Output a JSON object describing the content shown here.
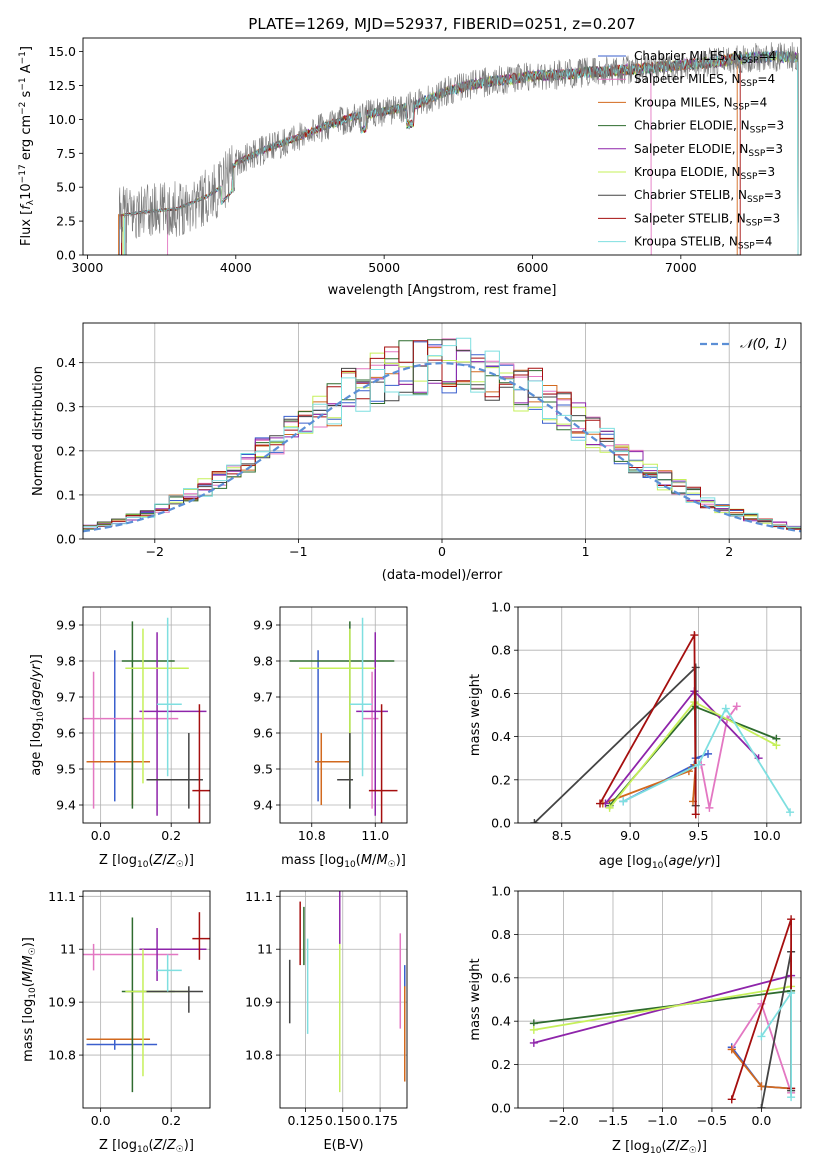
{
  "figure_title": "PLATE=1269, MJD=52937, FIBERID=0251, z=0.207",
  "models": [
    {
      "name": "Chabrier MILES",
      "nssp": "4",
      "color": "#3a5fcd"
    },
    {
      "name": "Salpeter MILES",
      "nssp": "4",
      "color": "#e377c2"
    },
    {
      "name": "Kroupa MILES",
      "nssp": "4",
      "color": "#d2691e"
    },
    {
      "name": "Chabrier ELODIE",
      "nssp": "3",
      "color": "#2e6b2e"
    },
    {
      "name": "Salpeter ELODIE",
      "nssp": "3",
      "color": "#8e24aa"
    },
    {
      "name": "Kroupa ELODIE",
      "nssp": "3",
      "color": "#c6f05a"
    },
    {
      "name": "Chabrier STELIB",
      "nssp": "3",
      "color": "#444444"
    },
    {
      "name": "Salpeter STELIB",
      "nssp": "3",
      "color": "#a50f0f"
    },
    {
      "name": "Kroupa STELIB",
      "nssp": "4",
      "color": "#7fdfe0"
    }
  ],
  "chart_data": [
    {
      "id": "spectrum",
      "type": "line",
      "title": "PLATE=1269, MJD=52937, FIBERID=0251, z=0.207",
      "xlabel": "wavelength [Angstrom, rest frame]",
      "ylabel": "Flux [f_λ 10^-17 erg cm^-2 s^-1 A^-1]",
      "xlim": [
        2970,
        7810
      ],
      "ylim": [
        0,
        16
      ],
      "xticks": [
        3000,
        4000,
        5000,
        6000,
        7000
      ],
      "yticks": [
        0.0,
        2.5,
        5.0,
        7.5,
        10.0,
        12.5,
        15.0
      ],
      "ytick_labels": [
        "0.0",
        "2.5",
        "5.0",
        "7.5",
        "10.0",
        "12.5",
        "15.0"
      ],
      "legend": "right",
      "continuum": {
        "x": [
          3200,
          3400,
          3600,
          3800,
          3900,
          4000,
          4200,
          4400,
          4600,
          4800,
          5000,
          5200,
          5400,
          5600,
          5800,
          6000,
          6200,
          6400,
          6600,
          6800,
          7000,
          7200,
          7400,
          7600
        ],
        "y": [
          2.9,
          3.2,
          3.4,
          4.3,
          5.0,
          6.8,
          7.8,
          8.6,
          9.5,
          10.2,
          10.6,
          11.0,
          12.0,
          12.6,
          12.9,
          13.2,
          13.3,
          13.5,
          13.6,
          13.8,
          14.0,
          14.2,
          14.5,
          14.6
        ]
      }
    },
    {
      "id": "residuals",
      "type": "line",
      "xlabel": "(data-model)/error",
      "ylabel": "Normed distribution",
      "xlim": [
        -2.5,
        2.5
      ],
      "ylim": [
        0,
        0.49
      ],
      "xticks": [
        -2,
        -1,
        0,
        1,
        2
      ],
      "xtick_labels": [
        "−2",
        "−1",
        "0",
        "1",
        "2"
      ],
      "yticks": [
        0.0,
        0.1,
        0.2,
        0.3,
        0.4
      ],
      "ytick_labels": [
        "0.0",
        "0.1",
        "0.2",
        "0.3",
        "0.4"
      ],
      "grid": true,
      "legend": "top-right",
      "normal_label": "𝒩(0, 1)",
      "hist_bins": {
        "start": -2.5,
        "width": 0.1,
        "count": 50
      }
    },
    {
      "id": "age_vs_z",
      "type": "scatter",
      "xlabel": "Z [log₁₀(Z/Z☉)]",
      "ylabel": "age  [log₁₀(age/yr)]",
      "xlim": [
        -0.05,
        0.31
      ],
      "ylim": [
        9.35,
        9.95
      ],
      "xticks": [
        0.0,
        0.2
      ],
      "xtick_labels": [
        "0.0",
        "0.2"
      ],
      "yticks": [
        9.4,
        9.5,
        9.6,
        9.7,
        9.8,
        9.9
      ],
      "grid": true,
      "points": [
        {
          "x": 0.04,
          "xerr": [
            0.04,
            0.04
          ],
          "y": 9.52,
          "yerr": [
            0.11,
            0.31
          ]
        },
        {
          "x": -0.02,
          "xerr": [
            0.15,
            0.24
          ],
          "y": 9.64,
          "yerr": [
            0.25,
            0.13
          ]
        },
        {
          "x": 0.09,
          "xerr": [
            0.13,
            0.05
          ],
          "y": 9.52,
          "yerr": [
            0.12,
            0.08
          ]
        },
        {
          "x": 0.09,
          "xerr": [
            0.03,
            0.12
          ],
          "y": 9.8,
          "yerr": [
            0.41,
            0.11
          ]
        },
        {
          "x": 0.16,
          "xerr": [
            0.05,
            0.14
          ],
          "y": 9.66,
          "yerr": [
            0.29,
            0.22
          ]
        },
        {
          "x": 0.12,
          "xerr": [
            0.05,
            0.13
          ],
          "y": 9.78,
          "yerr": [
            0.32,
            0.11
          ]
        },
        {
          "x": 0.25,
          "xerr": [
            0.12,
            0.04
          ],
          "y": 9.47,
          "yerr": [
            0.08,
            0.13
          ]
        },
        {
          "x": 0.28,
          "xerr": [
            0.02,
            0.03
          ],
          "y": 9.44,
          "yerr": [
            0.16,
            0.24
          ]
        },
        {
          "x": 0.19,
          "xerr": [
            0.03,
            0.04
          ],
          "y": 9.68,
          "yerr": [
            0.2,
            0.24
          ]
        }
      ]
    },
    {
      "id": "age_vs_mass",
      "type": "scatter",
      "xlabel": "mass [log₁₀(M/M☉)]",
      "xlim": [
        10.7,
        11.1
      ],
      "ylim": [
        9.35,
        9.95
      ],
      "xticks": [
        10.8,
        11.0
      ],
      "xtick_labels": [
        "10.8",
        "11.0"
      ],
      "yticks": [
        9.4,
        9.5,
        9.6,
        9.7,
        9.8,
        9.9
      ],
      "grid": true,
      "points": [
        {
          "x": 10.82,
          "xerr": [
            0.01,
            0.01
          ],
          "y": 9.52,
          "yerr": [
            0.11,
            0.31
          ]
        },
        {
          "x": 10.99,
          "xerr": [
            0.03,
            0.02
          ],
          "y": 9.64,
          "yerr": [
            0.25,
            0.13
          ]
        },
        {
          "x": 10.83,
          "xerr": [
            0.02,
            0.09
          ],
          "y": 9.52,
          "yerr": [
            0.12,
            0.08
          ]
        },
        {
          "x": 10.92,
          "xerr": [
            0.19,
            0.14
          ],
          "y": 9.8,
          "yerr": [
            0.41,
            0.11
          ]
        },
        {
          "x": 11.0,
          "xerr": [
            0.06,
            0.04
          ],
          "y": 9.66,
          "yerr": [
            0.29,
            0.22
          ]
        },
        {
          "x": 10.92,
          "xerr": [
            0.16,
            0.08
          ],
          "y": 9.78,
          "yerr": [
            0.32,
            0.11
          ]
        },
        {
          "x": 10.92,
          "xerr": [
            0.04,
            0.01
          ],
          "y": 9.47,
          "yerr": [
            0.08,
            0.13
          ]
        },
        {
          "x": 11.02,
          "xerr": [
            0.04,
            0.05
          ],
          "y": 9.44,
          "yerr": [
            0.16,
            0.24
          ]
        },
        {
          "x": 10.96,
          "xerr": [
            0.04,
            0.03
          ],
          "y": 9.68,
          "yerr": [
            0.2,
            0.24
          ]
        }
      ]
    },
    {
      "id": "massweight_vs_age",
      "type": "line",
      "xlabel": "age  [log₁₀(age/yr)]",
      "ylabel": "mass weight",
      "xlim": [
        8.18,
        10.25
      ],
      "ylim": [
        0,
        1.0
      ],
      "xticks": [
        8.5,
        9.0,
        9.5,
        10.0
      ],
      "xtick_labels": [
        "8.5",
        "9.0",
        "9.5",
        "10.0"
      ],
      "yticks": [
        0.0,
        0.2,
        0.4,
        0.6,
        0.8,
        1.0
      ],
      "ytick_labels": [
        "0.0",
        "0.2",
        "0.4",
        "0.6",
        "0.8",
        "1.0"
      ],
      "grid": true,
      "series": [
        {
          "x": [
            8.95,
            9.47,
            9.48,
            9.57
          ],
          "y": [
            0.1,
            0.27,
            0.3,
            0.32
          ]
        },
        {
          "x": [
            9.52,
            9.58,
            9.71,
            9.78
          ],
          "y": [
            0.27,
            0.07,
            0.48,
            0.54
          ]
        },
        {
          "x": [
            8.8,
            9.43,
            9.48,
            9.46
          ],
          "y": [
            0.09,
            0.24,
            0.27,
            0.1
          ]
        },
        {
          "x": [
            8.85,
            9.47,
            10.07
          ],
          "y": [
            0.08,
            0.54,
            0.39
          ]
        },
        {
          "x": [
            8.82,
            9.47,
            9.94
          ],
          "y": [
            0.09,
            0.61,
            0.3
          ]
        },
        {
          "x": [
            8.85,
            9.47,
            10.07
          ],
          "y": [
            0.07,
            0.56,
            0.36
          ]
        },
        {
          "x": [
            8.3,
            9.48,
            9.48
          ],
          "y": [
            0.0,
            0.72,
            0.08
          ]
        },
        {
          "x": [
            8.78,
            9.47,
            9.48
          ],
          "y": [
            0.09,
            0.87,
            0.04
          ]
        },
        {
          "x": [
            8.95,
            9.5,
            9.7,
            10.17
          ],
          "y": [
            0.1,
            0.27,
            0.53,
            0.05
          ]
        }
      ]
    },
    {
      "id": "mass_vs_z",
      "type": "scatter",
      "xlabel": "Z [log₁₀(Z/Z☉)]",
      "ylabel": "mass [log₁₀(M/M☉)]",
      "xlim": [
        -0.05,
        0.31
      ],
      "ylim": [
        10.7,
        11.11
      ],
      "xticks": [
        0.0,
        0.2
      ],
      "xtick_labels": [
        "0.0",
        "0.2"
      ],
      "yticks": [
        10.8,
        10.9,
        11.0,
        11.1
      ],
      "grid": true,
      "points": [
        {
          "x": 0.04,
          "xerr": [
            0.08,
            0.12
          ],
          "y": 10.82,
          "yerr": [
            0.01,
            0.01
          ]
        },
        {
          "x": -0.02,
          "xerr": [
            0.15,
            0.24
          ],
          "y": 10.99,
          "yerr": [
            0.03,
            0.02
          ]
        },
        {
          "x": 0.09,
          "xerr": [
            0.13,
            0.05
          ],
          "y": 10.83,
          "yerr": [
            0.02,
            0.09
          ]
        },
        {
          "x": 0.09,
          "xerr": [
            0.03,
            0.12
          ],
          "y": 10.92,
          "yerr": [
            0.19,
            0.14
          ]
        },
        {
          "x": 0.16,
          "xerr": [
            0.05,
            0.14
          ],
          "y": 11.0,
          "yerr": [
            0.06,
            0.04
          ]
        },
        {
          "x": 0.12,
          "xerr": [
            0.05,
            0.13
          ],
          "y": 10.92,
          "yerr": [
            0.16,
            0.08
          ]
        },
        {
          "x": 0.25,
          "xerr": [
            0.12,
            0.04
          ],
          "y": 10.92,
          "yerr": [
            0.04,
            0.01
          ]
        },
        {
          "x": 0.28,
          "xerr": [
            0.02,
            0.03
          ],
          "y": 11.02,
          "yerr": [
            0.04,
            0.05
          ]
        },
        {
          "x": 0.19,
          "xerr": [
            0.03,
            0.04
          ],
          "y": 10.96,
          "yerr": [
            0.04,
            0.03
          ]
        }
      ]
    },
    {
      "id": "mass_vs_ebv",
      "type": "scatter",
      "xlabel": "E(B-V)",
      "xlim": [
        0.108,
        0.193
      ],
      "ylim": [
        10.7,
        11.11
      ],
      "xticks": [
        0.125,
        0.15,
        0.175
      ],
      "xtick_labels": [
        "0.125",
        "0.150",
        "0.175"
      ],
      "yticks": [
        10.8,
        10.9,
        11.0,
        11.1
      ],
      "grid": true,
      "points": [
        {
          "x": 0.1915,
          "y": 10.92,
          "yerr": [
            0.05,
            0.05
          ]
        },
        {
          "x": 0.1885,
          "y": 10.94,
          "yerr": [
            0.09,
            0.09
          ]
        },
        {
          "x": 0.1915,
          "y": 10.86,
          "yerr": [
            0.11,
            0.07
          ]
        },
        {
          "x": 0.124,
          "y": 11.03,
          "yerr": [
            0.06,
            0.05
          ]
        },
        {
          "x": 0.148,
          "y": 11.04,
          "yerr": [
            0.06,
            0.07
          ]
        },
        {
          "x": 0.148,
          "y": 10.92,
          "yerr": [
            0.19,
            0.09
          ]
        },
        {
          "x": 0.1145,
          "y": 10.92,
          "yerr": [
            0.06,
            0.06
          ]
        },
        {
          "x": 0.1215,
          "y": 11.03,
          "yerr": [
            0.06,
            0.06
          ]
        },
        {
          "x": 0.1265,
          "y": 10.94,
          "yerr": [
            0.1,
            0.08
          ]
        }
      ]
    },
    {
      "id": "massweight_vs_z",
      "type": "line",
      "xlabel": "Z [log₁₀(Z/Z☉)]",
      "ylabel": "mass weight",
      "xlim": [
        -2.46,
        0.4
      ],
      "ylim": [
        0,
        1.0
      ],
      "xticks": [
        -2.0,
        -1.5,
        -1.0,
        -0.5,
        0.0
      ],
      "xtick_labels": [
        "−2.0",
        "−1.5",
        "−1.0",
        "−0.5",
        "0.0"
      ],
      "yticks": [
        0.0,
        0.2,
        0.4,
        0.6,
        0.8,
        1.0
      ],
      "ytick_labels": [
        "0.0",
        "0.2",
        "0.4",
        "0.6",
        "0.8",
        "1.0"
      ],
      "grid": true,
      "series": [
        {
          "x": [
            -0.3,
            0.0,
            0.3
          ],
          "y": [
            0.28,
            0.1,
            0.09
          ]
        },
        {
          "x": [
            -0.3,
            0.0,
            0.3
          ],
          "y": [
            0.27,
            0.48,
            0.07
          ]
        },
        {
          "x": [
            -0.3,
            0.0,
            0.3
          ],
          "y": [
            0.27,
            0.1,
            0.09
          ]
        },
        {
          "x": [
            -2.3,
            0.3
          ],
          "y": [
            0.39,
            0.54
          ]
        },
        {
          "x": [
            -2.3,
            0.3
          ],
          "y": [
            0.3,
            0.61
          ]
        },
        {
          "x": [
            -2.3,
            0.3
          ],
          "y": [
            0.36,
            0.56
          ]
        },
        {
          "x": [
            0.0,
            0.3,
            0.3
          ],
          "y": [
            0.0,
            0.72,
            0.08
          ]
        },
        {
          "x": [
            -0.3,
            0.3,
            0.3
          ],
          "y": [
            0.04,
            0.87,
            0.09
          ]
        },
        {
          "x": [
            0.0,
            0.3,
            0.3
          ],
          "y": [
            0.33,
            0.53,
            0.05
          ]
        }
      ]
    }
  ]
}
